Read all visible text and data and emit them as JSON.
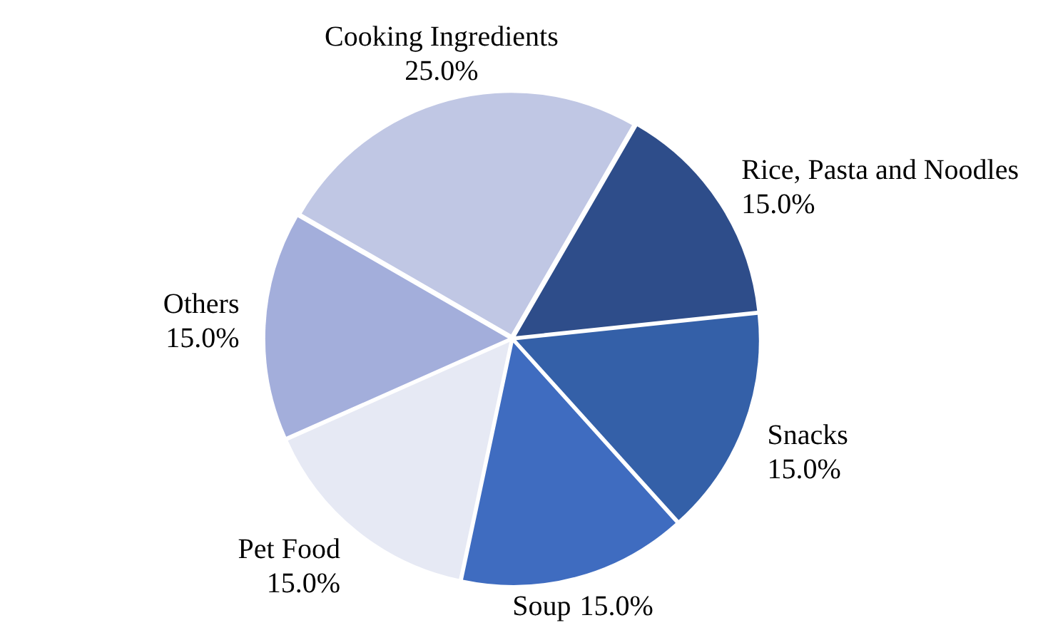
{
  "chart_data": {
    "type": "pie",
    "categories": [
      "Rice, Pasta and Noodles",
      "Snacks",
      "Soup",
      "Pet Food",
      "Others",
      "Cooking Ingredients"
    ],
    "values": [
      15,
      15,
      15,
      15,
      15,
      25
    ],
    "colors": [
      "#2e4d8a",
      "#3460a8",
      "#3f6cc0",
      "#e6e9f4",
      "#a3aedb",
      "#c0c7e4"
    ],
    "value_labels": [
      "15.0%",
      "15.0%",
      "15.0%",
      "15.0%",
      "15.0%",
      "25.0%"
    ],
    "legend": false
  }
}
